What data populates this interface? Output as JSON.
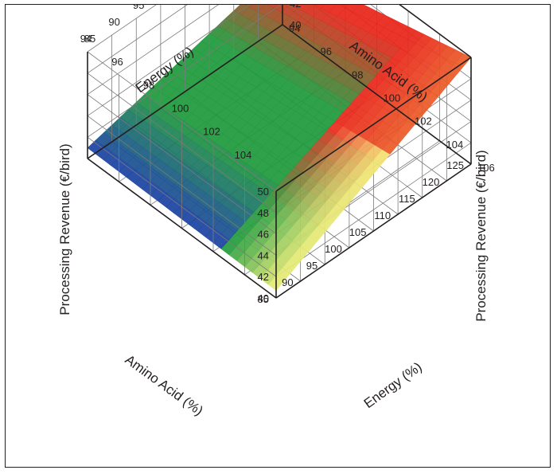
{
  "chart_data": {
    "type": "surface",
    "zlabel": "Processing Revenue (€/bird)",
    "xlabel": "Energy (%)",
    "ylabel": "Amino Acid (%)",
    "x_ticks": [
      "94",
      "96",
      "98",
      "100",
      "102",
      "104",
      "106"
    ],
    "y_ticks": [
      "85",
      "90",
      "95",
      "100",
      "105",
      "110",
      "115",
      "120",
      "125"
    ],
    "z_ticks": [
      "40",
      "42",
      "44",
      "46",
      "48",
      "50"
    ],
    "xlim": [
      94,
      106
    ],
    "ylim": [
      85,
      125
    ],
    "zlim": [
      40,
      50
    ],
    "grid": true,
    "colormap": [
      "#1b3fa8",
      "#1f9a3c",
      "#f4f07a",
      "#e8261b"
    ],
    "surface_corners": [
      {
        "energy": 94,
        "amino_acid": 85,
        "revenue": 41.0
      },
      {
        "energy": 94,
        "amino_acid": 125,
        "revenue": 45.6
      },
      {
        "energy": 106,
        "amino_acid": 85,
        "revenue": 40.7
      },
      {
        "energy": 106,
        "amino_acid": 125,
        "revenue": 50.0
      }
    ]
  }
}
